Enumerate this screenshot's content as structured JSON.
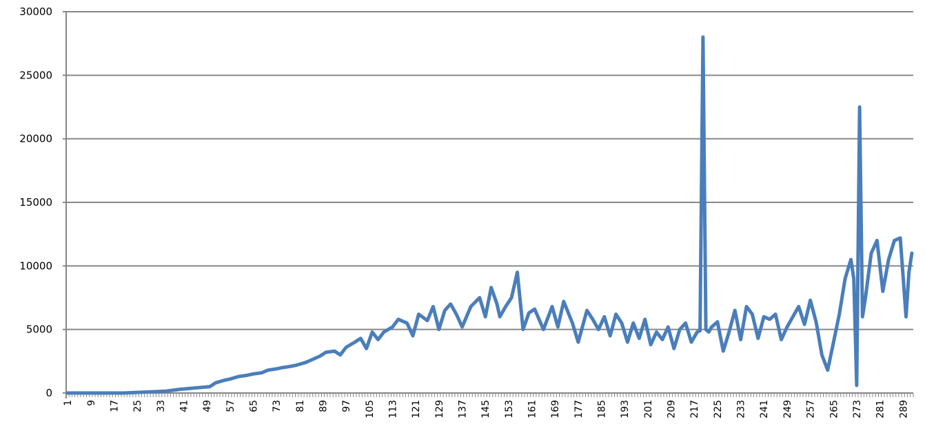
{
  "chart_data": {
    "type": "line",
    "title": "",
    "xlabel": "",
    "ylabel": "",
    "ylim": [
      0,
      30000
    ],
    "yticks": [
      0,
      5000,
      10000,
      15000,
      20000,
      25000,
      30000
    ],
    "xlim": [
      1,
      292
    ],
    "xtick_labels": [
      1,
      9,
      17,
      25,
      33,
      41,
      49,
      57,
      65,
      73,
      81,
      89,
      97,
      105,
      113,
      121,
      129,
      137,
      145,
      153,
      161,
      169,
      177,
      185,
      193,
      201,
      209,
      217,
      225,
      233,
      241,
      249,
      257,
      265,
      273,
      281,
      289
    ],
    "grid": true,
    "legend": "none",
    "series_color": "#4a7ebb",
    "series": [
      {
        "x": [
          1,
          10,
          20,
          25,
          30,
          35,
          40,
          45,
          50,
          52,
          55,
          57,
          60,
          63,
          65,
          68,
          70,
          73,
          75,
          78,
          80,
          83,
          85,
          88,
          90,
          93,
          95,
          97,
          100,
          102,
          104,
          106,
          108,
          110,
          113,
          115,
          118,
          120,
          122,
          125,
          127,
          129,
          131,
          133,
          135,
          137,
          140,
          143,
          145,
          147,
          149,
          150,
          152,
          154,
          156,
          158,
          160,
          162,
          165,
          168,
          170,
          172,
          175,
          177,
          180,
          182,
          184,
          186,
          188,
          190,
          192,
          194,
          196,
          198,
          200,
          202,
          204,
          206,
          208,
          210,
          212,
          214,
          216,
          218,
          219,
          220,
          221,
          222,
          223,
          225,
          227,
          229,
          231,
          233,
          235,
          237,
          239,
          241,
          243,
          245,
          247,
          249,
          251,
          253,
          255,
          257,
          259,
          261,
          263,
          265,
          267,
          269,
          271,
          272,
          273,
          274,
          275,
          276,
          278,
          280,
          282,
          284,
          286,
          288,
          290,
          291,
          292
        ],
        "y": [
          0,
          0,
          0,
          50,
          100,
          150,
          300,
          400,
          500,
          800,
          1000,
          1100,
          1300,
          1400,
          1500,
          1600,
          1800,
          1900,
          2000,
          2100,
          2200,
          2400,
          2600,
          2900,
          3200,
          3300,
          3000,
          3600,
          4000,
          4300,
          3500,
          4800,
          4200,
          4800,
          5200,
          5800,
          5500,
          4500,
          6200,
          5700,
          6800,
          5000,
          6500,
          7000,
          6200,
          5200,
          6800,
          7500,
          6000,
          8300,
          7000,
          6000,
          6800,
          7500,
          9500,
          5000,
          6300,
          6600,
          5000,
          6800,
          5200,
          7200,
          5500,
          4000,
          6500,
          5800,
          5000,
          6000,
          4500,
          6200,
          5500,
          4000,
          5500,
          4300,
          5800,
          3800,
          4800,
          4200,
          5200,
          3500,
          5000,
          5500,
          4000,
          4800,
          4900,
          28000,
          5000,
          4800,
          5200,
          5600,
          3300,
          4800,
          6500,
          4200,
          6800,
          6200,
          4300,
          6000,
          5800,
          6200,
          4200,
          5200,
          6000,
          6800,
          5400,
          7300,
          5600,
          3000,
          1800,
          4000,
          6200,
          9000,
          10500,
          9000,
          600,
          22500,
          6000,
          7500,
          11000,
          12000,
          8000,
          10500,
          12000,
          12200,
          6000,
          9500,
          11000
        ]
      }
    ]
  }
}
